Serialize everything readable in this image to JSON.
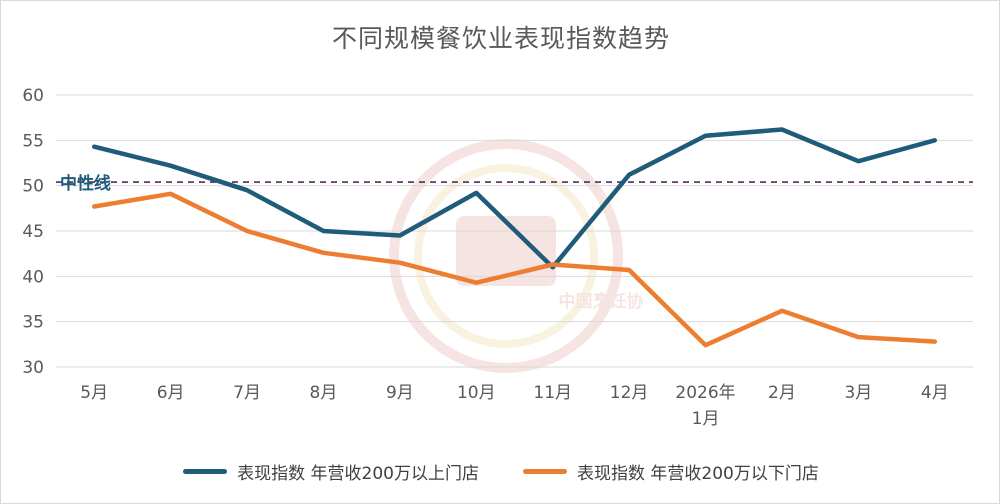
{
  "chart_data": {
    "type": "line",
    "title": "不同规模餐饮业表现指数趋势",
    "xlabel": "",
    "ylabel": "",
    "categories": [
      [
        "5月"
      ],
      [
        "6月"
      ],
      [
        "7月"
      ],
      [
        "8月"
      ],
      [
        "9月"
      ],
      [
        "10月"
      ],
      [
        "11月"
      ],
      [
        "12月"
      ],
      [
        "2026年",
        "1月"
      ],
      [
        "2月"
      ],
      [
        "3月"
      ],
      [
        "4月"
      ]
    ],
    "ylim": [
      30,
      60
    ],
    "yticks": [
      30,
      35,
      40,
      45,
      50,
      55,
      60
    ],
    "grid": true,
    "legend_position": "bottom",
    "series": [
      {
        "name": "表现指数 年营收200万以上门店",
        "color": "#1f5c7a",
        "values": [
          54.3,
          52.2,
          49.5,
          45.0,
          44.5,
          49.2,
          41.0,
          51.2,
          55.5,
          56.2,
          52.7,
          55.0
        ]
      },
      {
        "name": "表现指数 年营收200万以下门店",
        "color": "#ed7d31",
        "values": [
          47.7,
          49.1,
          45.0,
          42.6,
          41.5,
          39.3,
          41.3,
          40.7,
          32.4,
          36.2,
          33.3,
          32.8
        ]
      }
    ],
    "reference_line": {
      "label": "中性线",
      "value": 50.4,
      "color": "#5b2a5e",
      "label_color": "#1f5c7a",
      "style": "dashed"
    }
  },
  "watermark": {
    "text": "中国烹饪协"
  }
}
